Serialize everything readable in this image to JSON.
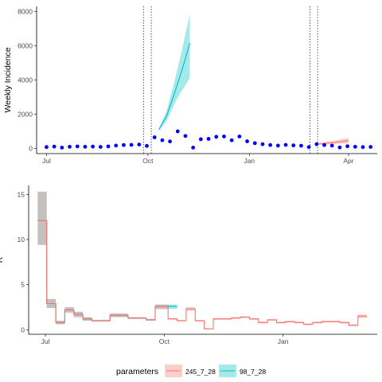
{
  "chart_data": [
    {
      "type": "line",
      "panel": "top",
      "ylabel": "Weekly Incidence",
      "xlabel": "",
      "x_ticks": [
        {
          "label": "Jul",
          "date": "2020-07-01"
        },
        {
          "label": "Oct",
          "date": "2020-10-01"
        },
        {
          "label": "Jan",
          "date": "2021-01-01"
        },
        {
          "label": "Apr",
          "date": "2021-04-01"
        }
      ],
      "xlim": [
        "2020-06-22",
        "2021-04-27"
      ],
      "y_ticks": [
        0,
        2000,
        4000,
        6000,
        8000
      ],
      "ylim": [
        -300,
        8300
      ],
      "grid": false,
      "observed_points": {
        "color": "#0000ff",
        "x": [
          "2020-07-01",
          "2020-07-08",
          "2020-07-15",
          "2020-07-22",
          "2020-07-29",
          "2020-08-05",
          "2020-08-12",
          "2020-08-19",
          "2020-08-26",
          "2020-09-02",
          "2020-09-09",
          "2020-09-16",
          "2020-09-23",
          "2020-09-30",
          "2020-10-07",
          "2020-10-14",
          "2020-10-21",
          "2020-10-28",
          "2020-11-04",
          "2020-11-11",
          "2020-11-18",
          "2020-11-25",
          "2020-12-02",
          "2020-12-09",
          "2020-12-16",
          "2020-12-23",
          "2020-12-30",
          "2021-01-06",
          "2021-01-13",
          "2021-01-20",
          "2021-01-27",
          "2021-02-03",
          "2021-02-10",
          "2021-02-17",
          "2021-02-24",
          "2021-03-03",
          "2021-03-10",
          "2021-03-17",
          "2021-03-24",
          "2021-03-31",
          "2021-04-07",
          "2021-04-14",
          "2021-04-21"
        ],
        "y": [
          80,
          110,
          50,
          100,
          120,
          100,
          110,
          90,
          120,
          170,
          200,
          210,
          230,
          150,
          650,
          480,
          410,
          1000,
          730,
          50,
          540,
          560,
          680,
          700,
          480,
          700,
          420,
          310,
          250,
          200,
          170,
          210,
          180,
          160,
          80,
          250,
          200,
          170,
          60,
          130,
          100,
          80,
          90
        ]
      },
      "vlines": {
        "style": "dotted",
        "x": [
          "2020-09-27",
          "2020-10-04",
          "2021-02-25",
          "2021-03-04"
        ]
      },
      "series": [
        {
          "name": "245_7_28",
          "color": "#f8766d",
          "x": [
            "2021-03-04",
            "2021-03-11",
            "2021-03-18",
            "2021-03-25",
            "2021-04-01"
          ],
          "y": [
            260,
            300,
            350,
            400,
            460
          ],
          "lower": [
            200,
            220,
            250,
            280,
            300
          ],
          "upper": [
            320,
            380,
            450,
            530,
            620
          ]
        },
        {
          "name": "98_7_28",
          "color": "#00bfc4",
          "x": [
            "2020-10-11",
            "2020-10-18",
            "2020-10-25",
            "2020-11-01",
            "2020-11-08"
          ],
          "y": [
            1100,
            1900,
            3200,
            4600,
            6150
          ],
          "lower": [
            1050,
            1600,
            2600,
            3400,
            4100
          ],
          "upper": [
            1180,
            2200,
            3900,
            5800,
            7850
          ]
        }
      ]
    },
    {
      "type": "line",
      "panel": "bottom",
      "ylabel": "R",
      "xlabel": "",
      "x_ticks": [
        {
          "label": "Jul",
          "date": "2020-07-01"
        },
        {
          "label": "Oct",
          "date": "2020-10-01"
        },
        {
          "label": "Jan",
          "date": "2021-01-01"
        }
      ],
      "xlim": [
        "2020-06-18",
        "2021-03-15"
      ],
      "y_ticks": [
        0,
        5,
        10,
        15
      ],
      "ylim": [
        -0.5,
        16
      ],
      "grid": false,
      "step": true,
      "series": [
        {
          "name": "98_7_28",
          "color": "#00bfc4",
          "x_end": "2020-10-11",
          "x": [
            "2020-06-25",
            "2020-07-02",
            "2020-07-09",
            "2020-07-16",
            "2020-07-23",
            "2020-07-30",
            "2020-08-06",
            "2020-08-13",
            "2020-08-20",
            "2020-08-27",
            "2020-09-03",
            "2020-09-10",
            "2020-09-17",
            "2020-09-24",
            "2020-10-01",
            "2020-10-04"
          ],
          "y": [
            12.1,
            2.9,
            0.8,
            2.2,
            1.7,
            1.2,
            1.0,
            1.0,
            1.6,
            1.6,
            1.3,
            1.3,
            1.1,
            2.6,
            2.6,
            2.6
          ],
          "lower": [
            9.4,
            2.4,
            0.6,
            1.9,
            1.4,
            1.0,
            0.9,
            0.9,
            1.4,
            1.4,
            1.2,
            1.2,
            1.0,
            2.3,
            2.3,
            2.3
          ],
          "upper": [
            15.3,
            3.4,
            1.0,
            2.5,
            2.0,
            1.4,
            1.1,
            1.1,
            1.8,
            1.8,
            1.4,
            1.4,
            1.2,
            2.8,
            2.8,
            2.8
          ]
        },
        {
          "name": "245_7_28",
          "color": "#f8766d",
          "x_end": "2021-03-07",
          "x": [
            "2020-06-25",
            "2020-07-02",
            "2020-07-09",
            "2020-07-16",
            "2020-07-23",
            "2020-07-30",
            "2020-08-06",
            "2020-08-13",
            "2020-08-20",
            "2020-08-27",
            "2020-09-03",
            "2020-09-10",
            "2020-09-17",
            "2020-09-24",
            "2020-10-04",
            "2020-10-11",
            "2020-10-18",
            "2020-10-25",
            "2020-11-01",
            "2020-11-08",
            "2020-11-15",
            "2020-11-22",
            "2020-11-29",
            "2020-12-06",
            "2020-12-13",
            "2020-12-20",
            "2020-12-27",
            "2021-01-03",
            "2021-01-10",
            "2021-01-17",
            "2021-01-24",
            "2021-01-31",
            "2021-02-07",
            "2021-02-14",
            "2021-02-21",
            "2021-02-28"
          ],
          "y": [
            12.1,
            2.9,
            0.8,
            2.2,
            1.7,
            1.2,
            1.0,
            1.0,
            1.6,
            1.6,
            1.3,
            1.3,
            1.1,
            2.6,
            1.2,
            1.0,
            2.3,
            1.0,
            0.1,
            1.2,
            1.2,
            1.3,
            1.4,
            1.2,
            0.8,
            1.1,
            0.8,
            0.9,
            0.8,
            0.6,
            0.8,
            0.9,
            0.9,
            0.8,
            0.5,
            1.5
          ],
          "lower": [
            9.4,
            2.4,
            0.6,
            1.9,
            1.4,
            1.0,
            0.9,
            0.9,
            1.4,
            1.4,
            1.2,
            1.2,
            1.0,
            2.3,
            1.1,
            0.9,
            2.1,
            0.9,
            0.05,
            1.1,
            1.1,
            1.2,
            1.3,
            1.1,
            0.7,
            1.0,
            0.7,
            0.8,
            0.7,
            0.5,
            0.7,
            0.8,
            0.8,
            0.7,
            0.4,
            1.3
          ],
          "upper": [
            15.3,
            3.4,
            1.0,
            2.5,
            2.0,
            1.4,
            1.1,
            1.1,
            1.8,
            1.8,
            1.4,
            1.4,
            1.2,
            2.8,
            1.3,
            1.1,
            2.5,
            1.1,
            0.15,
            1.3,
            1.3,
            1.4,
            1.5,
            1.3,
            0.9,
            1.2,
            0.9,
            1.0,
            0.9,
            0.7,
            0.9,
            1.0,
            1.0,
            0.9,
            0.6,
            1.7
          ]
        }
      ]
    }
  ],
  "legend": {
    "title": "parameters",
    "placement": "bottom",
    "items": [
      {
        "label": "245_7_28",
        "color": "#f8766d"
      },
      {
        "label": "98_7_28",
        "color": "#00bfc4"
      }
    ]
  }
}
